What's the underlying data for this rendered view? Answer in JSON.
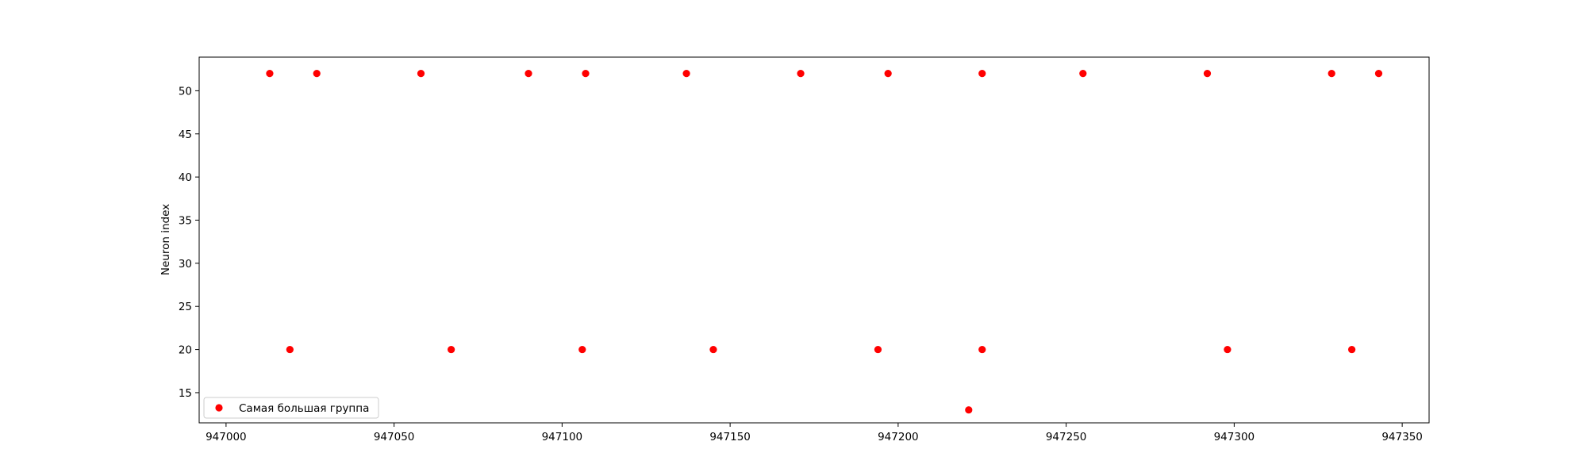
{
  "chart_data": {
    "type": "scatter",
    "title": "",
    "xlabel": "",
    "ylabel": "Neuron index",
    "xlim": [
      946992,
      947358
    ],
    "ylim": [
      11.5,
      53.9
    ],
    "x_ticks": [
      947000,
      947050,
      947100,
      947150,
      947200,
      947250,
      947300,
      947350
    ],
    "y_ticks": [
      15,
      20,
      25,
      30,
      35,
      40,
      45,
      50
    ],
    "grid": false,
    "legend_position": "lower-left",
    "marker_color": "#ff0000",
    "series": [
      {
        "name": "Самая большая группа",
        "points": [
          {
            "x": 947013,
            "y": 52
          },
          {
            "x": 947027,
            "y": 52
          },
          {
            "x": 947058,
            "y": 52
          },
          {
            "x": 947090,
            "y": 52
          },
          {
            "x": 947107,
            "y": 52
          },
          {
            "x": 947137,
            "y": 52
          },
          {
            "x": 947171,
            "y": 52
          },
          {
            "x": 947197,
            "y": 52
          },
          {
            "x": 947225,
            "y": 52
          },
          {
            "x": 947255,
            "y": 52
          },
          {
            "x": 947292,
            "y": 52
          },
          {
            "x": 947329,
            "y": 52
          },
          {
            "x": 947343,
            "y": 52
          },
          {
            "x": 947019,
            "y": 20
          },
          {
            "x": 947067,
            "y": 20
          },
          {
            "x": 947106,
            "y": 20
          },
          {
            "x": 947145,
            "y": 20
          },
          {
            "x": 947194,
            "y": 20
          },
          {
            "x": 947225,
            "y": 20
          },
          {
            "x": 947298,
            "y": 20
          },
          {
            "x": 947335,
            "y": 20
          },
          {
            "x": 947221,
            "y": 13
          }
        ]
      }
    ]
  }
}
